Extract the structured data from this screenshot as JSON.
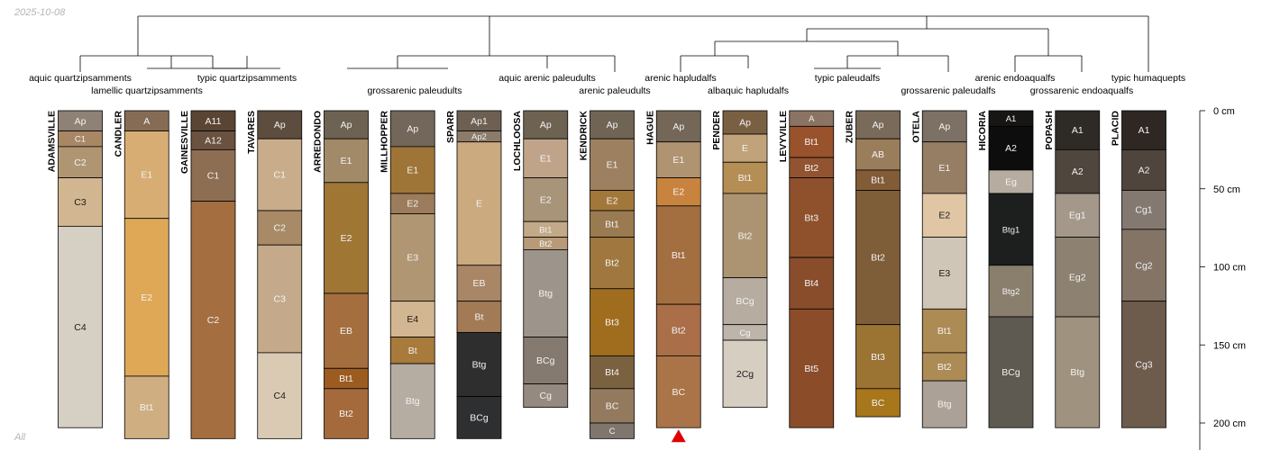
{
  "meta": {
    "date": "2025-10-08",
    "footer": "All"
  },
  "depth_axis": {
    "unit": "cm",
    "ticks": [
      {
        "value": 0,
        "label": "0 cm"
      },
      {
        "value": 50,
        "label": "50 cm"
      },
      {
        "value": 100,
        "label": "100 cm"
      },
      {
        "value": 150,
        "label": "150 cm"
      },
      {
        "value": 200,
        "label": "200 cm"
      }
    ]
  },
  "taxa": [
    {
      "text": "aquic quartzipsamments"
    },
    {
      "text": "lamellic quartzipsamments"
    },
    {
      "text": "typic quartzipsamments"
    },
    {
      "text": "grossarenic paleudults"
    },
    {
      "text": "aquic arenic paleudults"
    },
    {
      "text": "arenic paleudults"
    },
    {
      "text": "arenic hapludalfs"
    },
    {
      "text": "albaquic hapludalfs"
    },
    {
      "text": "typic paleudalfs"
    },
    {
      "text": "grossarenic paleudalfs"
    },
    {
      "text": "arenic endoaqualfs"
    },
    {
      "text": "grossarenic endoaqualfs"
    },
    {
      "text": "typic humaquepts"
    }
  ],
  "profiles": [
    {
      "name": "ADAMSVILLE",
      "horizons": [
        {
          "name": "Ap",
          "top": 0,
          "bottom": 13,
          "color": "#8e8175"
        },
        {
          "name": "C1",
          "top": 13,
          "bottom": 23,
          "color": "#a88765"
        },
        {
          "name": "C2",
          "top": 23,
          "bottom": 43,
          "color": "#b09573"
        },
        {
          "name": "C3",
          "top": 43,
          "bottom": 74,
          "color": "#d2b691"
        },
        {
          "name": "C4",
          "top": 74,
          "bottom": 203,
          "color": "#d6cfc4"
        }
      ]
    },
    {
      "name": "CANDLER",
      "horizons": [
        {
          "name": "A",
          "top": 0,
          "bottom": 13,
          "color": "#876c55"
        },
        {
          "name": "E1",
          "top": 13,
          "bottom": 69,
          "color": "#d8ad74"
        },
        {
          "name": "E2",
          "top": 69,
          "bottom": 170,
          "color": "#dea857"
        },
        {
          "name": "Bt1",
          "top": 170,
          "bottom": 210,
          "color": "#cfae82"
        }
      ]
    },
    {
      "name": "GAINESVILLE",
      "horizons": [
        {
          "name": "A11",
          "top": 0,
          "bottom": 13,
          "color": "#5a4535"
        },
        {
          "name": "A12",
          "top": 13,
          "bottom": 25,
          "color": "#6a5140"
        },
        {
          "name": "C1",
          "top": 25,
          "bottom": 58,
          "color": "#8e6e52"
        },
        {
          "name": "C2",
          "top": 58,
          "bottom": 210,
          "color": "#a46e40"
        }
      ]
    },
    {
      "name": "TAVARES",
      "horizons": [
        {
          "name": "Ap",
          "top": 0,
          "bottom": 18,
          "color": "#5d4d3e"
        },
        {
          "name": "C1",
          "top": 18,
          "bottom": 64,
          "color": "#c9ad8b"
        },
        {
          "name": "C2",
          "top": 64,
          "bottom": 86,
          "color": "#a88a66"
        },
        {
          "name": "C3",
          "top": 86,
          "bottom": 155,
          "color": "#c4aa8a"
        },
        {
          "name": "C4",
          "top": 155,
          "bottom": 210,
          "color": "#dacab4"
        }
      ]
    },
    {
      "name": "ARREDONDO",
      "horizons": [
        {
          "name": "Ap",
          "top": 0,
          "bottom": 18,
          "color": "#6e6352"
        },
        {
          "name": "E1",
          "top": 18,
          "bottom": 46,
          "color": "#a28a68"
        },
        {
          "name": "E2",
          "top": 46,
          "bottom": 117,
          "color": "#a07635"
        },
        {
          "name": "EB",
          "top": 117,
          "bottom": 165,
          "color": "#a46e3f"
        },
        {
          "name": "Bt1",
          "top": 165,
          "bottom": 178,
          "color": "#9c5c20"
        },
        {
          "name": "Bt2",
          "top": 178,
          "bottom": 210,
          "color": "#a56a3c"
        }
      ]
    },
    {
      "name": "MILLHOPPER",
      "horizons": [
        {
          "name": "Ap",
          "top": 0,
          "bottom": 23,
          "color": "#73665a"
        },
        {
          "name": "E1",
          "top": 23,
          "bottom": 53,
          "color": "#9e7537"
        },
        {
          "name": "E2",
          "top": 53,
          "bottom": 66,
          "color": "#9c7c5c"
        },
        {
          "name": "E3",
          "top": 66,
          "bottom": 122,
          "color": "#b09673"
        },
        {
          "name": "E4",
          "top": 122,
          "bottom": 145,
          "color": "#d2b691"
        },
        {
          "name": "Bt",
          "top": 145,
          "bottom": 162,
          "color": "#a87a3c"
        },
        {
          "name": "Btg",
          "top": 162,
          "bottom": 210,
          "color": "#b5aca2"
        }
      ]
    },
    {
      "name": "SPARR",
      "horizons": [
        {
          "name": "Ap1",
          "top": 0,
          "bottom": 13,
          "color": "#6d6052"
        },
        {
          "name": "Ap2",
          "top": 13,
          "bottom": 20,
          "color": "#8c7b6b"
        },
        {
          "name": "E",
          "top": 20,
          "bottom": 99,
          "color": "#cbaa80"
        },
        {
          "name": "EB",
          "top": 99,
          "bottom": 122,
          "color": "#a88666"
        },
        {
          "name": "Bt",
          "top": 122,
          "bottom": 142,
          "color": "#a27a55"
        },
        {
          "name": "Btg",
          "top": 142,
          "bottom": 183,
          "color": "#2e2e2e"
        },
        {
          "name": "BCg",
          "top": 183,
          "bottom": 210,
          "color": "#2e2f30"
        }
      ]
    },
    {
      "name": "LOCHLOOSA",
      "horizons": [
        {
          "name": "Ap",
          "top": 0,
          "bottom": 18,
          "color": "#6e6352"
        },
        {
          "name": "E1",
          "top": 18,
          "bottom": 43,
          "color": "#c0a48a"
        },
        {
          "name": "E2",
          "top": 43,
          "bottom": 71,
          "color": "#a89478"
        },
        {
          "name": "Bt1",
          "top": 71,
          "bottom": 81,
          "color": "#c2a988"
        },
        {
          "name": "Bt2",
          "top": 81,
          "bottom": 89,
          "color": "#b89a78"
        },
        {
          "name": "Btg",
          "top": 89,
          "bottom": 145,
          "color": "#9d958c"
        },
        {
          "name": "BCg",
          "top": 145,
          "bottom": 175,
          "color": "#857a70"
        },
        {
          "name": "Cg",
          "top": 175,
          "bottom": 190,
          "color": "#958a80"
        }
      ]
    },
    {
      "name": "KENDRICK",
      "horizons": [
        {
          "name": "Ap",
          "top": 0,
          "bottom": 18,
          "color": "#706454"
        },
        {
          "name": "E1",
          "top": 18,
          "bottom": 51,
          "color": "#9c8060"
        },
        {
          "name": "E2",
          "top": 51,
          "bottom": 64,
          "color": "#a2783a"
        },
        {
          "name": "Bt1",
          "top": 64,
          "bottom": 81,
          "color": "#9a7a50"
        },
        {
          "name": "Bt2",
          "top": 81,
          "bottom": 114,
          "color": "#a0783f"
        },
        {
          "name": "Bt3",
          "top": 114,
          "bottom": 157,
          "color": "#a06c1e"
        },
        {
          "name": "Bt4",
          "top": 157,
          "bottom": 178,
          "color": "#7a6140"
        },
        {
          "name": "BC",
          "top": 178,
          "bottom": 200,
          "color": "#937a5e"
        },
        {
          "name": "C",
          "top": 200,
          "bottom": 210,
          "color": "#7f766d"
        }
      ]
    },
    {
      "name": "HAGUE",
      "horizons": [
        {
          "name": "Ap",
          "top": 0,
          "bottom": 20,
          "color": "#746758"
        },
        {
          "name": "E1",
          "top": 20,
          "bottom": 43,
          "color": "#b09371"
        },
        {
          "name": "E2",
          "top": 43,
          "bottom": 61,
          "color": "#c8843e"
        },
        {
          "name": "Bt1",
          "top": 61,
          "bottom": 124,
          "color": "#a36e40"
        },
        {
          "name": "Bt2",
          "top": 124,
          "bottom": 157,
          "color": "#aa6e48"
        },
        {
          "name": "BC",
          "top": 157,
          "bottom": 203,
          "color": "#aa7448"
        }
      ]
    },
    {
      "name": "PENDER",
      "horizons": [
        {
          "name": "Ap",
          "top": 0,
          "bottom": 15,
          "color": "#7a6043"
        },
        {
          "name": "E",
          "top": 15,
          "bottom": 33,
          "color": "#c0a27b"
        },
        {
          "name": "Bt1",
          "top": 33,
          "bottom": 53,
          "color": "#b58e55"
        },
        {
          "name": "Bt2",
          "top": 53,
          "bottom": 107,
          "color": "#ac9472"
        },
        {
          "name": "BCg",
          "top": 107,
          "bottom": 137,
          "color": "#b7aca0"
        },
        {
          "name": "Cg",
          "top": 137,
          "bottom": 147,
          "color": "#bdb4aa"
        },
        {
          "name": "2Cg",
          "top": 147,
          "bottom": 190,
          "color": "#d7cec2"
        }
      ]
    },
    {
      "name": "LEVYVILLE",
      "horizons": [
        {
          "name": "A",
          "top": 0,
          "bottom": 10,
          "color": "#8b7463"
        },
        {
          "name": "Bt1",
          "top": 10,
          "bottom": 30,
          "color": "#98532c"
        },
        {
          "name": "Bt2",
          "top": 30,
          "bottom": 43,
          "color": "#925430"
        },
        {
          "name": "Bt3",
          "top": 43,
          "bottom": 94,
          "color": "#8e512c"
        },
        {
          "name": "Bt4",
          "top": 94,
          "bottom": 127,
          "color": "#894d2b"
        },
        {
          "name": "Bt5",
          "top": 127,
          "bottom": 203,
          "color": "#8b4c2a"
        }
      ]
    },
    {
      "name": "ZUBER",
      "horizons": [
        {
          "name": "Ap",
          "top": 0,
          "bottom": 18,
          "color": "#7a6a5a"
        },
        {
          "name": "AB",
          "top": 18,
          "bottom": 38,
          "color": "#9a7e5c"
        },
        {
          "name": "Bt1",
          "top": 38,
          "bottom": 51,
          "color": "#815c37"
        },
        {
          "name": "Bt2",
          "top": 51,
          "bottom": 137,
          "color": "#7e5e38"
        },
        {
          "name": "Bt3",
          "top": 137,
          "bottom": 178,
          "color": "#9b7434"
        },
        {
          "name": "BC",
          "top": 178,
          "bottom": 196,
          "color": "#a8761b"
        }
      ]
    },
    {
      "name": "OTELA",
      "horizons": [
        {
          "name": "Ap",
          "top": 0,
          "bottom": 20,
          "color": "#7d7064"
        },
        {
          "name": "E1",
          "top": 20,
          "bottom": 53,
          "color": "#967e64"
        },
        {
          "name": "E2",
          "top": 53,
          "bottom": 81,
          "color": "#e0c6a4"
        },
        {
          "name": "E3",
          "top": 81,
          "bottom": 127,
          "color": "#d0c6b8"
        },
        {
          "name": "Bt1",
          "top": 127,
          "bottom": 155,
          "color": "#ad8b55"
        },
        {
          "name": "Bt2",
          "top": 155,
          "bottom": 173,
          "color": "#ad8b55"
        },
        {
          "name": "Btg",
          "top": 173,
          "bottom": 203,
          "color": "#aca196"
        }
      ]
    },
    {
      "name": "HICORIA",
      "horizons": [
        {
          "name": "A1",
          "top": 0,
          "bottom": 10,
          "color": "#171615"
        },
        {
          "name": "A2",
          "top": 10,
          "bottom": 38,
          "color": "#0e0d0d"
        },
        {
          "name": "Eg",
          "top": 38,
          "bottom": 53,
          "color": "#b7aca0"
        },
        {
          "name": "Btg1",
          "top": 53,
          "bottom": 99,
          "color": "#1d1e1e"
        },
        {
          "name": "Btg2",
          "top": 99,
          "bottom": 132,
          "color": "#8a7e6d"
        },
        {
          "name": "BCg",
          "top": 132,
          "bottom": 203,
          "color": "#5e5a51"
        }
      ]
    },
    {
      "name": "POPASH",
      "horizons": [
        {
          "name": "A1",
          "top": 0,
          "bottom": 25,
          "color": "#2e2a26"
        },
        {
          "name": "A2",
          "top": 25,
          "bottom": 53,
          "color": "#4f463d"
        },
        {
          "name": "Eg1",
          "top": 53,
          "bottom": 81,
          "color": "#a4988a"
        },
        {
          "name": "Eg2",
          "top": 81,
          "bottom": 132,
          "color": "#8d8171"
        },
        {
          "name": "Btg",
          "top": 132,
          "bottom": 203,
          "color": "#9f9380"
        }
      ]
    },
    {
      "name": "PLACID",
      "horizons": [
        {
          "name": "A1",
          "top": 0,
          "bottom": 25,
          "color": "#2e2724"
        },
        {
          "name": "A2",
          "top": 25,
          "bottom": 51,
          "color": "#4f453d"
        },
        {
          "name": "Cg1",
          "top": 51,
          "bottom": 76,
          "color": "#837970"
        },
        {
          "name": "Cg2",
          "top": 76,
          "bottom": 122,
          "color": "#837466"
        },
        {
          "name": "Cg3",
          "top": 122,
          "bottom": 203,
          "color": "#6d5b4c"
        }
      ]
    }
  ],
  "marker": {
    "profile": "HAGUE",
    "depth": 203,
    "symbol": "triangle",
    "color": "#e00000"
  },
  "colors": {
    "line": "#000000",
    "label_light": "#f2f2f2",
    "label_dark": "#1a1a1a"
  }
}
